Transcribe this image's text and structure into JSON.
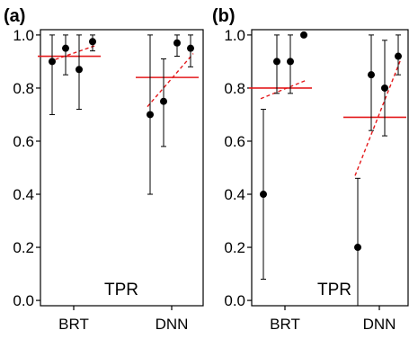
{
  "chart_data": [
    {
      "type": "scatter",
      "panel_label": "(a)",
      "annotation": "TPR",
      "categories": [
        "BRT",
        "DNN"
      ],
      "ylim": [
        -0.02,
        1.02
      ],
      "yticks": [
        "0.0",
        "0.2",
        "0.4",
        "0.6",
        "0.8",
        "1.0"
      ],
      "grid": false,
      "groups": [
        {
          "name": "BRT",
          "points": [
            {
              "value": 0.9,
              "lower": 0.7,
              "upper": 1.0
            },
            {
              "value": 0.95,
              "lower": 0.85,
              "upper": 1.0
            },
            {
              "value": 0.87,
              "lower": 0.72,
              "upper": 1.0
            },
            {
              "value": 0.975,
              "lower": 0.94,
              "upper": 1.0
            }
          ],
          "mean": 0.92,
          "trend": [
            0.9,
            0.96
          ]
        },
        {
          "name": "DNN",
          "points": [
            {
              "value": 0.7,
              "lower": 0.4,
              "upper": 1.0
            },
            {
              "value": 0.75,
              "lower": 0.58,
              "upper": 0.91
            },
            {
              "value": 0.97,
              "lower": 0.92,
              "upper": 1.0
            },
            {
              "value": 0.95,
              "lower": 0.88,
              "upper": 1.0
            }
          ],
          "mean": 0.84,
          "trend": [
            0.73,
            0.93
          ]
        }
      ]
    },
    {
      "type": "scatter",
      "panel_label": "(b)",
      "annotation": "TPR",
      "categories": [
        "BRT",
        "DNN"
      ],
      "ylim": [
        -0.02,
        1.02
      ],
      "yticks": [
        "0.0",
        "0.2",
        "0.4",
        "0.6",
        "0.8",
        "1.0"
      ],
      "grid": false,
      "groups": [
        {
          "name": "BRT",
          "points": [
            {
              "value": 0.4,
              "lower": 0.08,
              "upper": 0.72
            },
            {
              "value": 0.9,
              "lower": 0.78,
              "upper": 1.0
            },
            {
              "value": 0.9,
              "lower": 0.78,
              "upper": 1.0
            },
            {
              "value": 1.0,
              "lower": 1.0,
              "upper": 1.0
            }
          ],
          "mean": 0.8,
          "trend": [
            0.76,
            0.83
          ]
        },
        {
          "name": "DNN",
          "points": [
            {
              "value": 0.2,
              "lower": -0.02,
              "upper": 0.46
            },
            {
              "value": 0.85,
              "lower": 0.64,
              "upper": 1.0
            },
            {
              "value": 0.8,
              "lower": 0.62,
              "upper": 0.98
            },
            {
              "value": 0.92,
              "lower": 0.85,
              "upper": 1.0
            }
          ],
          "mean": 0.69,
          "trend": [
            0.47,
            0.91
          ]
        }
      ]
    }
  ],
  "colors": {
    "points": "#000000",
    "mean_line": "#e41a1c",
    "trend_line": "#e41a1c",
    "axis": "#000000"
  }
}
